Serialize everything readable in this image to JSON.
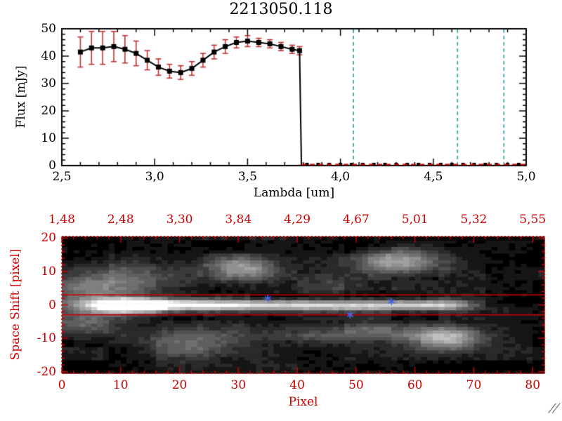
{
  "title": "2213050.118",
  "corner_mark": "//",
  "chart_data": [
    {
      "type": "line",
      "title": "2213050.118",
      "xlabel": "Lambda [um]",
      "ylabel": "Flux [mJy]",
      "xlim": [
        2.5,
        5.0
      ],
      "ylim": [
        0,
        50
      ],
      "grid": false,
      "xtick_values": [
        2.5,
        3.0,
        3.5,
        4.0,
        4.5,
        5.0
      ],
      "xtick_labels": [
        "2,5",
        "3,0",
        "3,5",
        "4,0",
        "4,5",
        "5,0"
      ],
      "ytick_values": [
        0,
        10,
        20,
        30,
        40,
        50
      ],
      "ytick_labels": [
        "0",
        "10",
        "20",
        "30",
        "40",
        "50"
      ],
      "x_minor_step": 0.1,
      "y_minor_step": 2,
      "line_color": "#000000",
      "marker_color": "#000000",
      "error_color": "#c03030",
      "series": {
        "name": "extracted spectrum",
        "lambda": [
          2.6,
          2.66,
          2.72,
          2.78,
          2.84,
          2.9,
          2.96,
          3.02,
          3.08,
          3.14,
          3.2,
          3.26,
          3.32,
          3.38,
          3.44,
          3.5,
          3.56,
          3.62,
          3.68,
          3.74,
          3.78
        ],
        "flux": [
          41.5,
          43.0,
          43.0,
          43.5,
          42.5,
          41.0,
          38.5,
          36.0,
          34.5,
          34.0,
          35.5,
          38.5,
          41.5,
          43.5,
          45.0,
          45.5,
          45.0,
          44.5,
          43.5,
          42.5,
          42.0
        ],
        "err": [
          5.5,
          6.0,
          6.0,
          5.5,
          5.0,
          4.5,
          3.5,
          3.0,
          2.5,
          2.5,
          2.5,
          2.5,
          2.5,
          2.5,
          2.0,
          2.0,
          1.5,
          1.5,
          1.5,
          1.5,
          1.5
        ]
      },
      "drop_lambda": 3.79,
      "zero_tail": {
        "start": 3.82,
        "end": 4.98,
        "step": 0.06,
        "value": 0
      },
      "zero_dashed_line": {
        "start": 3.79,
        "end": 5.0,
        "value": 0,
        "color": "#cc0000"
      },
      "vlines": {
        "values": [
          4.07,
          4.63,
          4.88
        ],
        "color": "#2f9f9f",
        "style": "dashed"
      }
    },
    {
      "type": "heatmap",
      "xlabel": "Pixel",
      "ylabel": "Space Shift [pixel]",
      "axis_color": "#cc0000",
      "xlim": [
        0,
        82
      ],
      "ylim": [
        -20.5,
        20.5
      ],
      "xtick_values": [
        0,
        10,
        20,
        30,
        40,
        50,
        60,
        70,
        80
      ],
      "xtick_labels": [
        "0",
        "10",
        "20",
        "30",
        "40",
        "50",
        "60",
        "70",
        "80"
      ],
      "ytick_values": [
        -20,
        -10,
        0,
        10,
        20
      ],
      "ytick_labels": [
        "-20",
        "-10",
        "0",
        "10",
        "20"
      ],
      "top_axis_tick_values": [
        0,
        10,
        20,
        30,
        40,
        50,
        60,
        70,
        80
      ],
      "top_axis_labels": [
        "1,48",
        "2,48",
        "3,30",
        "3,84",
        "4,29",
        "4,67",
        "5,01",
        "5,32",
        "5,55"
      ],
      "x_minor_step": 2,
      "y_minor_step": 2,
      "aperture_y": [
        3,
        -3
      ],
      "aperture_color": "#cc0000",
      "stars": [
        {
          "x": 35,
          "y": 2
        },
        {
          "x": 49,
          "y": -3
        },
        {
          "x": 56,
          "y": 1
        }
      ],
      "star_color": "#4466ee",
      "image": {
        "nx": 82,
        "ny": 41,
        "y0": -20,
        "background": 0.07,
        "fine_noise": 0.07,
        "coarse_noise": 0.12,
        "blobs": [
          {
            "x": 11,
            "y": 0,
            "sx": 4,
            "sy": 1.3,
            "a": 1.6
          },
          {
            "x": 20,
            "y": 0,
            "sx": 7,
            "sy": 1.2,
            "a": 0.7
          },
          {
            "x": 32,
            "y": 0,
            "sx": 9,
            "sy": 1.1,
            "a": 0.55
          },
          {
            "x": 45,
            "y": 0,
            "sx": 9,
            "sy": 1.1,
            "a": 0.5
          },
          {
            "x": 56,
            "y": 0,
            "sx": 7,
            "sy": 1.1,
            "a": 0.5
          },
          {
            "x": 64,
            "y": 0,
            "sx": 4,
            "sy": 1.2,
            "a": 0.45
          },
          {
            "x": 30,
            "y": 11,
            "sx": 4,
            "sy": 2.6,
            "a": 0.55
          },
          {
            "x": 57,
            "y": 13,
            "sx": 5,
            "sy": 2.6,
            "a": 0.6
          },
          {
            "x": 65,
            "y": -10,
            "sx": 4,
            "sy": 2.4,
            "a": 0.6
          },
          {
            "x": 21,
            "y": -12,
            "sx": 6,
            "sy": 3.0,
            "a": 0.3
          },
          {
            "x": 5,
            "y": 4,
            "sx": 6,
            "sy": 5.0,
            "a": 0.3
          },
          {
            "x": 3,
            "y": -4,
            "sx": 5,
            "sy": 4.0,
            "a": 0.28
          },
          {
            "x": 40,
            "y": -8,
            "sx": 14,
            "sy": 2.2,
            "a": 0.18
          },
          {
            "x": 55,
            "y": -8,
            "sx": 8,
            "sy": 2.0,
            "a": 0.22
          },
          {
            "x": 47,
            "y": 6,
            "sx": 6,
            "sy": 2.0,
            "a": 0.15
          },
          {
            "x": 12,
            "y": 8,
            "sx": 8,
            "sy": 3.0,
            "a": 0.2
          }
        ]
      }
    }
  ]
}
